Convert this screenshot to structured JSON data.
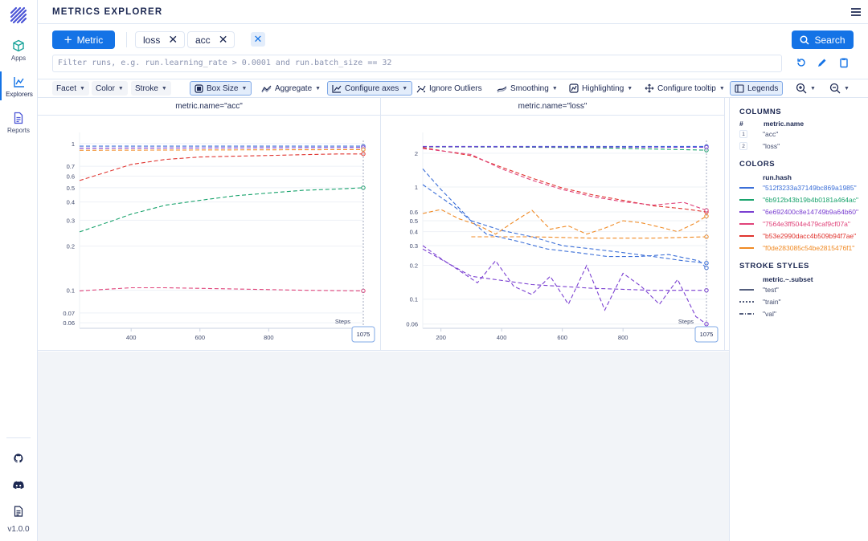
{
  "app": {
    "title": "METRICS EXPLORER",
    "version": "v1.0.0"
  },
  "nav": [
    {
      "label": "Apps",
      "icon": "cube-icon"
    },
    {
      "label": "Explorers",
      "icon": "chart-icon"
    },
    {
      "label": "Reports",
      "icon": "document-icon"
    }
  ],
  "toolbar": {
    "add_label": "Metric",
    "chips": [
      "loss",
      "acc"
    ],
    "search_label": "Search",
    "query_placeholder": "Filter runs, e.g. run.learning_rate > 0.0001 and run.batch_size == 32"
  },
  "controls": {
    "facet": "Facet",
    "color": "Color",
    "stroke": "Stroke",
    "box_size": "Box Size",
    "aggregate": "Aggregate",
    "configure_axes": "Configure axes",
    "ignore_outliers": "Ignore Outliers",
    "smoothing": "Smoothing",
    "highlighting": "Highlighting",
    "configure_tooltip": "Configure tooltip",
    "legends": "Legends"
  },
  "panels": [
    {
      "title": "metric.name=\"acc\""
    },
    {
      "title": "metric.name=\"loss\""
    }
  ],
  "legend": {
    "columns_header": "COLUMNS",
    "columns_hash": "#",
    "columns_sub": "metric.name",
    "columns": [
      {
        "n": "1",
        "v": "\"acc\""
      },
      {
        "n": "2",
        "v": "\"loss\""
      }
    ],
    "colors_header": "COLORS",
    "colors_sub": "run.hash",
    "colors": [
      {
        "v": "\"512f3233a37149bc869a1985\"",
        "color": "#3b6fd8"
      },
      {
        "v": "\"6b912b43b19b4b0181a464ac\"",
        "color": "#18a36c"
      },
      {
        "v": "\"6e692400c8e14749b9a64b60\"",
        "color": "#7a3fd1"
      },
      {
        "v": "\"7564e3ff504e479caf9cf07a\"",
        "color": "#e0437a"
      },
      {
        "v": "\"b53e2990dacc4b509b94f7ae\"",
        "color": "#e0342f"
      },
      {
        "v": "\"f0de283085c54be2815476f1\"",
        "color": "#f08a24"
      }
    ],
    "stroke_header": "STROKE STYLES",
    "stroke_sub": "metric.~.subset",
    "strokes": [
      {
        "v": "\"test\"",
        "dash": ""
      },
      {
        "v": "\"train\"",
        "dash": "2,2"
      },
      {
        "v": "\"val\"",
        "dash": "5,2,1,2"
      }
    ]
  },
  "chart_data": [
    {
      "type": "line",
      "title": "metric.name=\"acc\"",
      "xlabel": "Steps",
      "y_scale": "log",
      "x_ticks": [
        "400",
        "600",
        "800",
        "1075"
      ],
      "y_ticks": [
        "1",
        "0.7",
        "0.6",
        "0.5",
        "0.4",
        "0.3",
        "0.2",
        "0.1",
        "0.07",
        "0.06"
      ],
      "ylim": [
        0.055,
        1.05
      ],
      "xlim": [
        250,
        1075
      ],
      "cursor_x": 1075,
      "series": [
        {
          "color": "#3b6fd8",
          "dash": "5,3",
          "x": [
            250,
            1075
          ],
          "y": [
            0.96,
            0.96
          ]
        },
        {
          "color": "#7a3fd1",
          "dash": "5,3",
          "x": [
            250,
            1075
          ],
          "y": [
            0.93,
            0.94
          ]
        },
        {
          "color": "#f08a24",
          "dash": "5,3",
          "x": [
            250,
            1075
          ],
          "y": [
            0.9,
            0.91
          ]
        },
        {
          "color": "#e0342f",
          "dash": "5,3",
          "x": [
            250,
            400,
            500,
            600,
            700,
            800,
            900,
            1000,
            1075
          ],
          "y": [
            0.56,
            0.72,
            0.78,
            0.81,
            0.82,
            0.83,
            0.84,
            0.85,
            0.85
          ]
        },
        {
          "color": "#18a36c",
          "dash": "5,3",
          "x": [
            250,
            350,
            400,
            500,
            600,
            700,
            800,
            900,
            1000,
            1075
          ],
          "y": [
            0.25,
            0.3,
            0.33,
            0.38,
            0.41,
            0.44,
            0.46,
            0.48,
            0.49,
            0.5
          ]
        },
        {
          "color": "#e0437a",
          "dash": "5,3",
          "x": [
            250,
            400,
            500,
            700,
            800,
            900,
            1075
          ],
          "y": [
            0.099,
            0.104,
            0.104,
            0.102,
            0.101,
            0.1,
            0.099
          ]
        }
      ]
    },
    {
      "type": "line",
      "title": "metric.name=\"loss\"",
      "xlabel": "Steps",
      "y_scale": "log",
      "x_ticks": [
        "200",
        "400",
        "600",
        "800",
        "1075"
      ],
      "y_ticks": [
        "2",
        "1",
        "0.6",
        "0.5",
        "0.4",
        "0.3",
        "0.2",
        "0.1",
        "0.06"
      ],
      "ylim": [
        0.055,
        2.6
      ],
      "xlim": [
        140,
        1075
      ],
      "cursor_x": 1075,
      "series": [
        {
          "color": "#3b6fd8",
          "dash": "5,3",
          "x": [
            140,
            1075
          ],
          "y": [
            2.3,
            2.3
          ]
        },
        {
          "color": "#18a36c",
          "dash": "5,3",
          "x": [
            140,
            400,
            700,
            1075
          ],
          "y": [
            2.28,
            2.27,
            2.24,
            2.13
          ]
        },
        {
          "color": "#7a3fd1",
          "dash": "5,3",
          "x": [
            140,
            1075
          ],
          "y": [
            2.29,
            2.26
          ]
        },
        {
          "color": "#e0342f",
          "dash": "5,3",
          "x": [
            140,
            300,
            400,
            500,
            600,
            700,
            800,
            900,
            1000,
            1075
          ],
          "y": [
            2.25,
            1.9,
            1.5,
            1.2,
            0.98,
            0.85,
            0.76,
            0.68,
            0.64,
            0.6
          ]
        },
        {
          "color": "#e0437a",
          "dash": "5,3",
          "x": [
            140,
            300,
            400,
            500,
            600,
            700,
            800,
            900,
            1000,
            1075
          ],
          "y": [
            2.2,
            1.95,
            1.45,
            1.15,
            0.95,
            0.82,
            0.74,
            0.69,
            0.73,
            0.62
          ]
        },
        {
          "color": "#f08a24",
          "dash": "5,3",
          "x": [
            140,
            200,
            260,
            320,
            380,
            440,
            500,
            560,
            620,
            680,
            740,
            800,
            860,
            920,
            980,
            1040,
            1075
          ],
          "y": [
            0.58,
            0.63,
            0.52,
            0.46,
            0.38,
            0.49,
            0.62,
            0.42,
            0.45,
            0.38,
            0.43,
            0.5,
            0.48,
            0.44,
            0.4,
            0.48,
            0.55
          ]
        },
        {
          "color": "#f08a24",
          "dash": "5,3",
          "x": [
            300,
            500,
            700,
            900,
            1075
          ],
          "y": [
            0.36,
            0.36,
            0.35,
            0.35,
            0.36
          ]
        },
        {
          "color": "#3b6fd8",
          "dash": "5,3",
          "x": [
            140,
            200,
            300,
            400,
            500,
            600,
            700,
            800,
            900,
            1000,
            1075
          ],
          "y": [
            1.45,
            0.95,
            0.5,
            0.41,
            0.36,
            0.3,
            0.28,
            0.26,
            0.24,
            0.22,
            0.21
          ]
        },
        {
          "color": "#3b6fd8",
          "dash": "5,3",
          "x": [
            140,
            250,
            350,
            450,
            550,
            650,
            750,
            850,
            950,
            1050,
            1075
          ],
          "y": [
            1.05,
            0.65,
            0.38,
            0.33,
            0.28,
            0.26,
            0.24,
            0.24,
            0.25,
            0.22,
            0.19
          ]
        },
        {
          "color": "#7a3fd1",
          "dash": "5,3",
          "x": [
            140,
            200,
            260,
            320,
            380,
            440,
            500,
            560,
            620,
            680,
            740,
            800,
            860,
            920,
            980,
            1040,
            1075
          ],
          "y": [
            0.3,
            0.23,
            0.18,
            0.14,
            0.22,
            0.13,
            0.11,
            0.16,
            0.09,
            0.2,
            0.08,
            0.17,
            0.13,
            0.09,
            0.15,
            0.07,
            0.06
          ]
        },
        {
          "color": "#7a3fd1",
          "dash": "5,3",
          "x": [
            140,
            300,
            500,
            700,
            900,
            1075
          ],
          "y": [
            0.28,
            0.16,
            0.135,
            0.125,
            0.12,
            0.12
          ]
        }
      ]
    }
  ]
}
